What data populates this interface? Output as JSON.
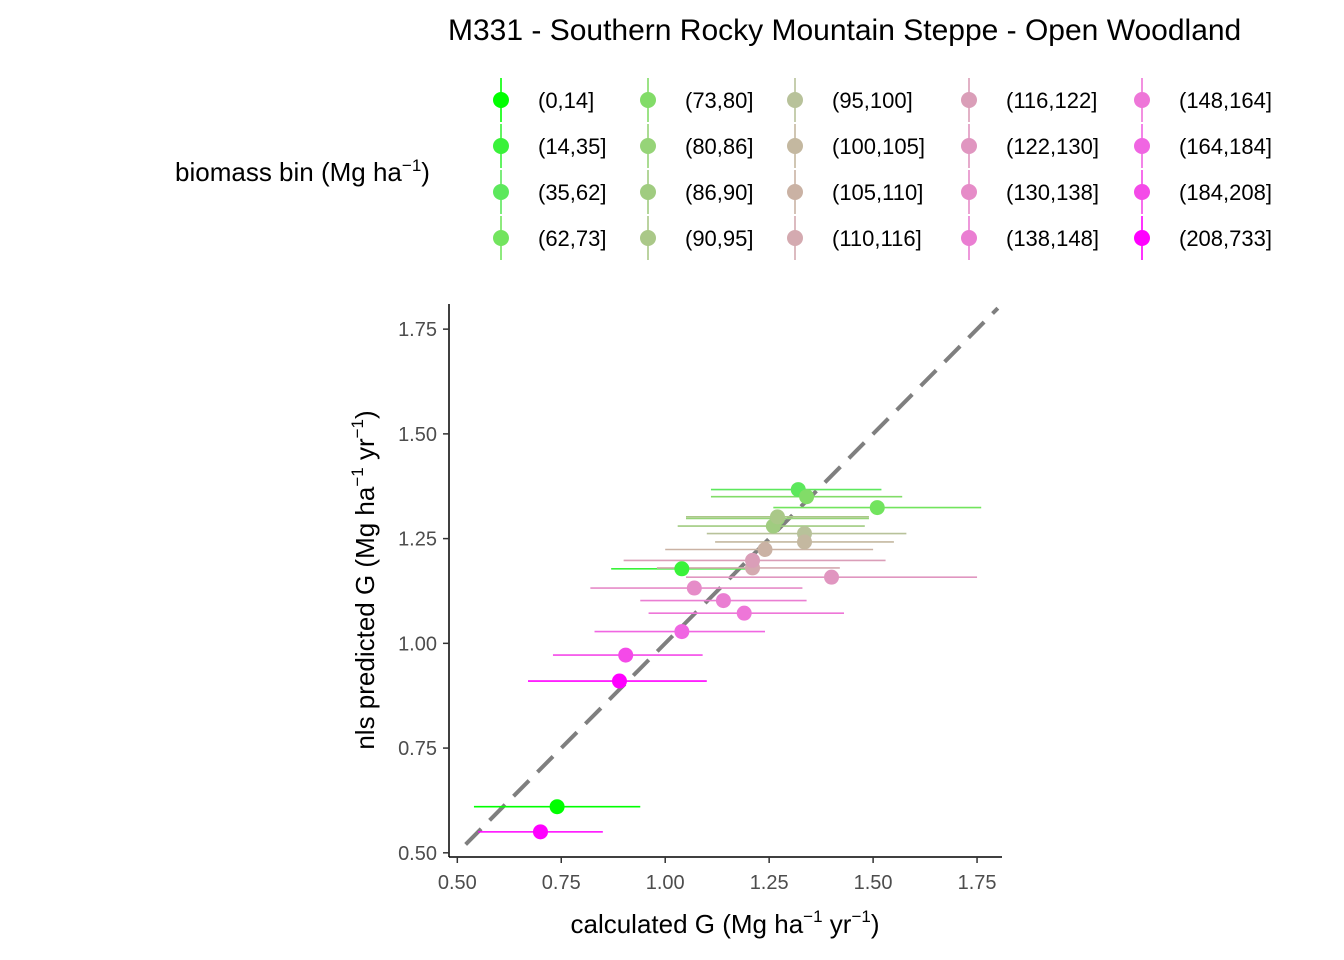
{
  "chart_data": {
    "type": "scatter",
    "title": "M331 - Southern Rocky Mountain Steppe - Open Woodland",
    "xlabel": {
      "prefix": "calculated G (Mg ha",
      "sup1": "−1",
      "mid": " yr",
      "sup2": "−1",
      "suffix": ")"
    },
    "ylabel": {
      "prefix": "nls predicted G (Mg ha",
      "sup1": "−1",
      "mid": " yr",
      "sup2": "−1",
      "suffix": ")"
    },
    "xlim": [
      0.48,
      1.81
    ],
    "ylim": [
      0.49,
      1.81
    ],
    "x_ticks": [
      0.5,
      0.75,
      1.0,
      1.25,
      1.5,
      1.75
    ],
    "x_tick_labels": [
      "0.50",
      "0.75",
      "1.00",
      "1.25",
      "1.50",
      "1.75"
    ],
    "y_ticks": [
      0.5,
      0.75,
      1.0,
      1.25,
      1.5,
      1.75
    ],
    "y_tick_labels": [
      "0.50",
      "0.75",
      "1.00",
      "1.25",
      "1.50",
      "1.75"
    ],
    "reference_line": {
      "type": "identity",
      "style": "dashed",
      "color": "#7f7f7f",
      "from": 0.52,
      "to": 1.8
    },
    "legend": {
      "title": {
        "prefix": "biomass bin (Mg ha",
        "sup": "−1",
        "suffix": ")"
      },
      "position": "top",
      "columns": 5
    },
    "series": [
      {
        "name": "(0,14]",
        "color": "#00ff00",
        "x": 0.74,
        "y": 0.61,
        "xmin": 0.54,
        "xmax": 0.94
      },
      {
        "name": "(14,35]",
        "color": "#3af23a",
        "x": 1.04,
        "y": 1.178,
        "xmin": 0.87,
        "xmax": 1.21
      },
      {
        "name": "(35,62]",
        "color": "#5ce85c",
        "x": 1.32,
        "y": 1.367,
        "xmin": 1.11,
        "xmax": 1.52
      },
      {
        "name": "(62,73]",
        "color": "#72e45e",
        "x": 1.51,
        "y": 1.324,
        "xmin": 1.26,
        "xmax": 1.76
      },
      {
        "name": "(73,80]",
        "color": "#82dc68",
        "x": 1.34,
        "y": 1.35,
        "xmin": 1.11,
        "xmax": 1.57
      },
      {
        "name": "(80,86]",
        "color": "#96d478",
        "x": 1.27,
        "y": 1.298,
        "xmin": 1.05,
        "xmax": 1.49
      },
      {
        "name": "(86,90]",
        "color": "#a0cc80",
        "x": 1.26,
        "y": 1.28,
        "xmin": 1.03,
        "xmax": 1.48
      },
      {
        "name": "(90,95]",
        "color": "#aac888",
        "x": 1.27,
        "y": 1.302,
        "xmin": 1.05,
        "xmax": 1.49
      },
      {
        "name": "(95,100]",
        "color": "#b8c29a",
        "x": 1.335,
        "y": 1.262,
        "xmin": 1.1,
        "xmax": 1.58
      },
      {
        "name": "(100,105]",
        "color": "#c4b8a0",
        "x": 1.335,
        "y": 1.242,
        "xmin": 1.12,
        "xmax": 1.55
      },
      {
        "name": "(105,110]",
        "color": "#cab2a4",
        "x": 1.24,
        "y": 1.224,
        "xmin": 1.0,
        "xmax": 1.5
      },
      {
        "name": "(110,116]",
        "color": "#d4aab0",
        "x": 1.21,
        "y": 1.18,
        "xmin": 0.98,
        "xmax": 1.42
      },
      {
        "name": "(116,122]",
        "color": "#da9eb8",
        "x": 1.21,
        "y": 1.198,
        "xmin": 0.9,
        "xmax": 1.53
      },
      {
        "name": "(122,130]",
        "color": "#e096c0",
        "x": 1.4,
        "y": 1.158,
        "xmin": 1.05,
        "xmax": 1.75
      },
      {
        "name": "(130,138]",
        "color": "#e68cc8",
        "x": 1.07,
        "y": 1.132,
        "xmin": 0.82,
        "xmax": 1.33
      },
      {
        "name": "(138,148]",
        "color": "#ea7ed2",
        "x": 1.14,
        "y": 1.102,
        "xmin": 0.94,
        "xmax": 1.34
      },
      {
        "name": "(148,164]",
        "color": "#ee76d8",
        "x": 1.19,
        "y": 1.072,
        "xmin": 0.96,
        "xmax": 1.43
      },
      {
        "name": "(164,184]",
        "color": "#f066e2",
        "x": 1.04,
        "y": 1.028,
        "xmin": 0.83,
        "xmax": 1.24
      },
      {
        "name": "(184,208]",
        "color": "#f44ae8",
        "x": 0.905,
        "y": 0.972,
        "xmin": 0.73,
        "xmax": 1.09
      },
      {
        "name": "(208,733]",
        "color": "#ff00ff",
        "x": 0.89,
        "y": 0.91,
        "xmin": 0.67,
        "xmax": 1.1
      },
      {
        "name": "(208,733]",
        "color": "#ff00ff",
        "x": 0.7,
        "y": 0.55,
        "xmin": 0.55,
        "xmax": 0.85
      }
    ]
  }
}
